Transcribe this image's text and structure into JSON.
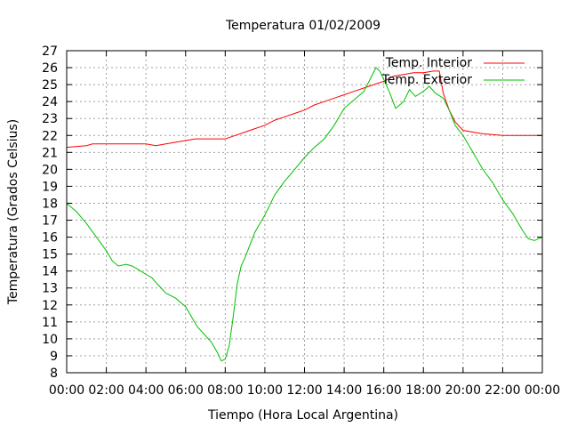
{
  "chart_data": {
    "type": "line",
    "title": "Temperatura 01/02/2009",
    "xlabel": "Tiempo (Hora Local Argentina)",
    "ylabel": "Temperatura (Grados Celsius)",
    "xlim": [
      0,
      24
    ],
    "ylim": [
      8,
      27
    ],
    "grid": true,
    "legend_position": "top-right",
    "x_tick_labels": [
      "00:00",
      "02:00",
      "04:00",
      "06:00",
      "08:00",
      "10:00",
      "12:00",
      "14:00",
      "16:00",
      "18:00",
      "20:00",
      "22:00",
      "00:00"
    ],
    "y_tick_labels": [
      "8",
      "9",
      "10",
      "11",
      "12",
      "13",
      "14",
      "15",
      "16",
      "17",
      "18",
      "19",
      "20",
      "21",
      "22",
      "23",
      "24",
      "25",
      "26",
      "27"
    ],
    "series": [
      {
        "name": "Temp. Interior",
        "color": "#ff0000",
        "x": [
          0,
          1,
          1.3,
          1.5,
          2,
          3,
          4,
          4.5,
          5,
          5.5,
          6,
          6.5,
          7,
          8,
          8.5,
          9,
          9.5,
          10,
          10.5,
          11,
          11.5,
          12,
          12.5,
          13,
          13.5,
          14,
          14.5,
          15,
          15.5,
          16,
          16.5,
          17,
          17.5,
          18,
          18.5,
          18.8,
          19,
          19.3,
          19.6,
          20,
          20.5,
          21,
          22,
          23,
          24
        ],
        "y": [
          21.3,
          21.4,
          21.5,
          21.5,
          21.5,
          21.5,
          21.5,
          21.4,
          21.5,
          21.6,
          21.7,
          21.8,
          21.8,
          21.8,
          22.0,
          22.2,
          22.4,
          22.6,
          22.9,
          23.1,
          23.3,
          23.5,
          23.8,
          24.0,
          24.2,
          24.4,
          24.6,
          24.8,
          25.0,
          25.2,
          25.5,
          25.6,
          25.7,
          25.7,
          25.8,
          25.8,
          24.5,
          23.5,
          22.8,
          22.3,
          22.2,
          22.1,
          22.0,
          22.0,
          22.0
        ]
      },
      {
        "name": "Temp. Exterior",
        "color": "#00c000",
        "x": [
          0,
          0.5,
          1,
          1.5,
          2,
          2.3,
          2.6,
          3,
          3.3,
          3.6,
          4,
          4.3,
          4.6,
          5,
          5.5,
          6,
          6.3,
          6.6,
          7,
          7.3,
          7.6,
          7.8,
          8,
          8.2,
          8.4,
          8.6,
          8.8,
          9,
          9.5,
          10,
          10.5,
          11,
          11.5,
          12,
          12.5,
          13,
          13.5,
          14,
          14.5,
          15,
          15.3,
          15.6,
          15.8,
          16,
          16.3,
          16.6,
          17,
          17.3,
          17.6,
          18,
          18.3,
          18.6,
          19,
          19.3,
          19.6,
          20,
          20.5,
          21,
          21.5,
          22,
          22.5,
          23,
          23.3,
          23.6,
          24
        ],
        "y": [
          18.0,
          17.5,
          16.8,
          16.0,
          15.2,
          14.6,
          14.3,
          14.4,
          14.3,
          14.1,
          13.8,
          13.6,
          13.2,
          12.7,
          12.4,
          11.9,
          11.3,
          10.7,
          10.2,
          9.8,
          9.2,
          8.7,
          8.8,
          9.6,
          11.3,
          13.2,
          14.3,
          14.8,
          16.3,
          17.3,
          18.5,
          19.3,
          20.0,
          20.7,
          21.3,
          21.8,
          22.6,
          23.6,
          24.1,
          24.6,
          25.3,
          26.0,
          25.8,
          25.3,
          24.5,
          23.6,
          24.0,
          24.7,
          24.3,
          24.6,
          24.9,
          24.5,
          24.2,
          23.5,
          22.6,
          22.0,
          21.0,
          20.0,
          19.2,
          18.2,
          17.4,
          16.4,
          15.9,
          15.8,
          16.0
        ]
      }
    ]
  }
}
